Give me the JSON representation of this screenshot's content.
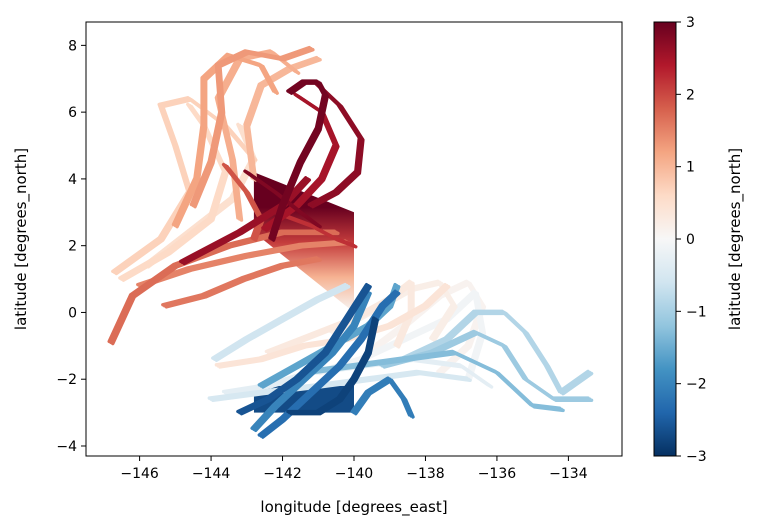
{
  "chart_data": {
    "type": "scatter",
    "title": "",
    "xlabel": "longitude [degrees_east]",
    "ylabel": "latitude [degrees_north]",
    "xlim": [
      -147.5,
      -132.5
    ],
    "ylim": [
      -4.3,
      8.7
    ],
    "xticks": [
      -146,
      -144,
      -142,
      -140,
      -138,
      -136,
      -134
    ],
    "yticks": [
      -4,
      -2,
      0,
      2,
      4,
      6,
      8
    ],
    "xtick_labels": [
      "−146",
      "−144",
      "−142",
      "−140",
      "−138",
      "−136",
      "−134"
    ],
    "ytick_labels": [
      "−4",
      "−2",
      "0",
      "2",
      "4",
      "6",
      "8"
    ],
    "colorbar": {
      "label": "latitude [degrees_north]",
      "colormap": "RdBu_r",
      "vmin": -3,
      "vmax": 3,
      "ticks": [
        -3,
        -2,
        -1,
        0,
        1,
        2,
        3
      ],
      "tick_labels": [
        "−3",
        "−2",
        "−1",
        "0",
        "1",
        "2",
        "3"
      ],
      "colors": [
        "#053061",
        "#2166ac",
        "#4393c3",
        "#92c5de",
        "#d1e5f0",
        "#f7f7f7",
        "#fddbc7",
        "#f4a582",
        "#d6604d",
        "#b2182b",
        "#67001f"
      ]
    },
    "grid": false,
    "trajectories": [
      {
        "color_value": 2.6,
        "points": [
          [
            -144.8,
            1.5
          ],
          [
            -143.2,
            2.4
          ],
          [
            -142.0,
            3.2
          ],
          [
            -141.3,
            4.0
          ]
        ]
      },
      {
        "color_value": 2.8,
        "points": [
          [
            -143.0,
            4.2
          ],
          [
            -142.2,
            3.6
          ],
          [
            -141.5,
            3.0
          ],
          [
            -141.0,
            2.6
          ]
        ]
      },
      {
        "color_value": 2.9,
        "points": [
          [
            -141.8,
            6.6
          ],
          [
            -141.4,
            6.9
          ],
          [
            -141.0,
            6.9
          ],
          [
            -140.8,
            6.5
          ],
          [
            -141.0,
            5.5
          ],
          [
            -141.5,
            4.5
          ],
          [
            -142.0,
            3.2
          ],
          [
            -142.3,
            2.2
          ]
        ]
      },
      {
        "color_value": 2.7,
        "points": [
          [
            -141.0,
            6.8
          ],
          [
            -140.4,
            6.2
          ],
          [
            -139.8,
            5.2
          ],
          [
            -139.9,
            4.2
          ],
          [
            -140.5,
            3.6
          ],
          [
            -141.2,
            3.2
          ]
        ]
      },
      {
        "color_value": 2.5,
        "points": [
          [
            -141.6,
            6.5
          ],
          [
            -140.9,
            6.0
          ],
          [
            -140.5,
            5.0
          ],
          [
            -140.9,
            4.0
          ],
          [
            -141.6,
            3.2
          ],
          [
            -142.5,
            2.5
          ]
        ]
      },
      {
        "color_value": 2.2,
        "points": [
          [
            -142.2,
            3.0
          ],
          [
            -141.2,
            2.6
          ],
          [
            -140.5,
            2.2
          ],
          [
            -140.0,
            2.0
          ]
        ]
      },
      {
        "color_value": 1.9,
        "points": [
          [
            -143.6,
            4.4
          ],
          [
            -143.0,
            3.6
          ],
          [
            -142.6,
            2.8
          ],
          [
            -142.8,
            2.2
          ]
        ]
      },
      {
        "color_value": 1.7,
        "points": [
          [
            -146.8,
            -0.9
          ],
          [
            -146.2,
            0.5
          ],
          [
            -145.0,
            1.4
          ],
          [
            -143.5,
            2.0
          ],
          [
            -142.0,
            2.4
          ],
          [
            -140.5,
            2.4
          ]
        ]
      },
      {
        "color_value": 1.5,
        "points": [
          [
            -146.0,
            0.8
          ],
          [
            -144.6,
            1.3
          ],
          [
            -143.0,
            1.7
          ],
          [
            -141.5,
            2.0
          ],
          [
            -140.2,
            2.1
          ]
        ]
      },
      {
        "color_value": 1.6,
        "points": [
          [
            -145.3,
            0.2
          ],
          [
            -144.2,
            0.5
          ],
          [
            -143.1,
            1.0
          ],
          [
            -142.0,
            1.4
          ],
          [
            -141.0,
            1.6
          ]
        ]
      },
      {
        "color_value": 1.3,
        "points": [
          [
            -144.5,
            3.2
          ],
          [
            -144.0,
            4.5
          ],
          [
            -143.7,
            6.0
          ],
          [
            -143.8,
            7.4
          ],
          [
            -143.0,
            7.8
          ],
          [
            -142.0,
            7.6
          ],
          [
            -141.2,
            7.9
          ]
        ]
      },
      {
        "color_value": 1.2,
        "points": [
          [
            -145.0,
            2.6
          ],
          [
            -144.4,
            4.0
          ],
          [
            -144.2,
            5.6
          ],
          [
            -144.2,
            7.0
          ],
          [
            -143.5,
            7.7
          ],
          [
            -142.6,
            7.4
          ],
          [
            -142.2,
            6.6
          ]
        ]
      },
      {
        "color_value": 1.1,
        "points": [
          [
            -143.2,
            2.8
          ],
          [
            -143.4,
            4.6
          ],
          [
            -143.8,
            6.4
          ],
          [
            -143.2,
            7.6
          ],
          [
            -142.3,
            7.8
          ],
          [
            -141.6,
            7.2
          ]
        ]
      },
      {
        "color_value": 1.0,
        "points": [
          [
            -142.8,
            4.0
          ],
          [
            -143.0,
            5.6
          ],
          [
            -142.6,
            6.8
          ],
          [
            -141.8,
            7.3
          ],
          [
            -141.0,
            7.6
          ]
        ]
      },
      {
        "color_value": 0.7,
        "points": [
          [
            -146.7,
            1.2
          ],
          [
            -145.4,
            2.2
          ],
          [
            -144.6,
            3.6
          ],
          [
            -145.0,
            5.0
          ],
          [
            -145.4,
            6.2
          ],
          [
            -144.6,
            6.4
          ],
          [
            -143.6,
            5.6
          ],
          [
            -142.8,
            4.6
          ]
        ]
      },
      {
        "color_value": 0.6,
        "points": [
          [
            -146.5,
            1.0
          ],
          [
            -145.2,
            1.8
          ],
          [
            -144.0,
            2.8
          ],
          [
            -143.6,
            4.2
          ],
          [
            -144.2,
            5.6
          ],
          [
            -144.6,
            6.2
          ]
        ]
      },
      {
        "color_value": 0.5,
        "points": [
          [
            -145.8,
            1.4
          ],
          [
            -144.6,
            2.4
          ],
          [
            -143.4,
            3.4
          ],
          [
            -142.8,
            4.6
          ],
          [
            -143.2,
            5.6
          ]
        ]
      },
      {
        "color_value": 0.4,
        "points": [
          [
            -143.8,
            -1.6
          ],
          [
            -142.6,
            -1.4
          ],
          [
            -141.4,
            -1.0
          ],
          [
            -140.2,
            -0.8
          ],
          [
            -139.0,
            -0.4
          ],
          [
            -138.0,
            0.2
          ],
          [
            -137.4,
            0.8
          ]
        ]
      },
      {
        "color_value": 0.3,
        "points": [
          [
            -142.4,
            -1.2
          ],
          [
            -141.2,
            -0.7
          ],
          [
            -140.0,
            -0.2
          ],
          [
            -139.0,
            0.4
          ],
          [
            -138.4,
            0.9
          ],
          [
            -138.4,
            0.0
          ],
          [
            -138.8,
            -1.0
          ]
        ]
      },
      {
        "color_value": 0.2,
        "points": [
          [
            -140.6,
            -0.6
          ],
          [
            -139.4,
            0.1
          ],
          [
            -138.4,
            0.7
          ],
          [
            -137.6,
            0.9
          ],
          [
            -137.2,
            0.2
          ],
          [
            -137.8,
            -0.8
          ]
        ]
      },
      {
        "color_value": 0.1,
        "points": [
          [
            -139.6,
            -1.2
          ],
          [
            -138.6,
            -0.4
          ],
          [
            -137.6,
            0.5
          ],
          [
            -136.8,
            0.9
          ],
          [
            -136.4,
            0.2
          ],
          [
            -136.8,
            -1.0
          ],
          [
            -137.6,
            -1.8
          ]
        ]
      },
      {
        "color_value": -0.1,
        "points": [
          [
            -141.0,
            -1.8
          ],
          [
            -139.8,
            -1.4
          ],
          [
            -138.6,
            -0.8
          ],
          [
            -137.4,
            -0.2
          ],
          [
            -136.6,
            0.6
          ],
          [
            -136.4,
            -0.6
          ],
          [
            -136.8,
            -2.0
          ]
        ]
      },
      {
        "color_value": -0.3,
        "points": [
          [
            -143.6,
            -2.4
          ],
          [
            -142.4,
            -2.2
          ],
          [
            -141.2,
            -1.8
          ],
          [
            -139.8,
            -1.6
          ],
          [
            -138.4,
            -1.4
          ],
          [
            -137.0,
            -1.6
          ],
          [
            -136.2,
            -2.2
          ]
        ]
      },
      {
        "color_value": -0.5,
        "points": [
          [
            -144.0,
            -2.6
          ],
          [
            -142.6,
            -2.4
          ],
          [
            -141.0,
            -2.2
          ],
          [
            -139.6,
            -2.0
          ],
          [
            -138.2,
            -1.8
          ],
          [
            -136.8,
            -2.0
          ]
        ]
      },
      {
        "color_value": -0.6,
        "points": [
          [
            -143.9,
            -1.4
          ],
          [
            -143.0,
            -0.8
          ],
          [
            -142.0,
            -0.2
          ],
          [
            -141.0,
            0.4
          ],
          [
            -140.2,
            0.8
          ]
        ]
      },
      {
        "color_value": -0.9,
        "points": [
          [
            -138.6,
            -1.4
          ],
          [
            -137.4,
            -0.8
          ],
          [
            -136.6,
            0.0
          ],
          [
            -135.8,
            0.0
          ],
          [
            -135.2,
            -0.6
          ],
          [
            -134.6,
            -1.6
          ],
          [
            -134.2,
            -2.4
          ],
          [
            -133.4,
            -1.8
          ]
        ]
      },
      {
        "color_value": -1.1,
        "points": [
          [
            -139.2,
            -1.6
          ],
          [
            -137.8,
            -1.2
          ],
          [
            -136.6,
            -0.6
          ],
          [
            -135.8,
            -1.0
          ],
          [
            -135.2,
            -2.0
          ],
          [
            -134.4,
            -2.6
          ],
          [
            -133.4,
            -2.6
          ]
        ]
      },
      {
        "color_value": -1.3,
        "points": [
          [
            -141.4,
            -1.8
          ],
          [
            -140.0,
            -1.6
          ],
          [
            -138.6,
            -1.4
          ],
          [
            -137.2,
            -1.2
          ],
          [
            -136.0,
            -1.8
          ],
          [
            -135.0,
            -2.8
          ],
          [
            -134.2,
            -2.9
          ]
        ]
      },
      {
        "color_value": -1.6,
        "points": [
          [
            -142.6,
            -2.2
          ],
          [
            -141.6,
            -1.6
          ],
          [
            -140.6,
            -1.0
          ],
          [
            -139.6,
            -0.4
          ],
          [
            -139.0,
            0.2
          ],
          [
            -138.8,
            0.8
          ]
        ]
      },
      {
        "color_value": -2.0,
        "points": [
          [
            -142.8,
            -3.5
          ],
          [
            -142.2,
            -2.8
          ],
          [
            -141.4,
            -2.0
          ],
          [
            -140.6,
            -1.2
          ],
          [
            -140.0,
            -0.4
          ],
          [
            -139.6,
            0.6
          ]
        ]
      },
      {
        "color_value": -2.3,
        "points": [
          [
            -142.6,
            -3.7
          ],
          [
            -142.0,
            -3.2
          ],
          [
            -141.2,
            -2.4
          ],
          [
            -140.4,
            -1.6
          ],
          [
            -139.8,
            -0.8
          ],
          [
            -139.2,
            0.2
          ],
          [
            -138.8,
            0.6
          ]
        ]
      },
      {
        "color_value": -2.6,
        "points": [
          [
            -143.2,
            -3.0
          ],
          [
            -142.4,
            -2.6
          ],
          [
            -141.6,
            -2.0
          ],
          [
            -140.8,
            -1.2
          ],
          [
            -140.2,
            -0.2
          ],
          [
            -139.6,
            0.8
          ]
        ]
      },
      {
        "color_value": -2.8,
        "points": [
          [
            -141.8,
            -3.0
          ],
          [
            -141.0,
            -3.0
          ],
          [
            -140.4,
            -2.6
          ],
          [
            -140.0,
            -2.0
          ],
          [
            -139.6,
            -1.2
          ],
          [
            -139.4,
            -0.2
          ]
        ]
      },
      {
        "color_value": -2.1,
        "points": [
          [
            -140.0,
            -3.0
          ],
          [
            -139.6,
            -2.4
          ],
          [
            -139.0,
            -2.0
          ],
          [
            -138.6,
            -2.6
          ],
          [
            -138.4,
            -3.1
          ]
        ]
      }
    ],
    "wedge": {
      "x_left": -142.8,
      "x_right": -140.0,
      "y_top_right": 3.0,
      "y_bottom_right": 0.0,
      "y_top_left": 4.2,
      "y_bottom_left": 2.4
    },
    "neg_block": {
      "x_left": -142.8,
      "x_right": -140.0,
      "y_top": -2.2,
      "y_bottom": -3.0,
      "color_value": -2.7
    }
  }
}
